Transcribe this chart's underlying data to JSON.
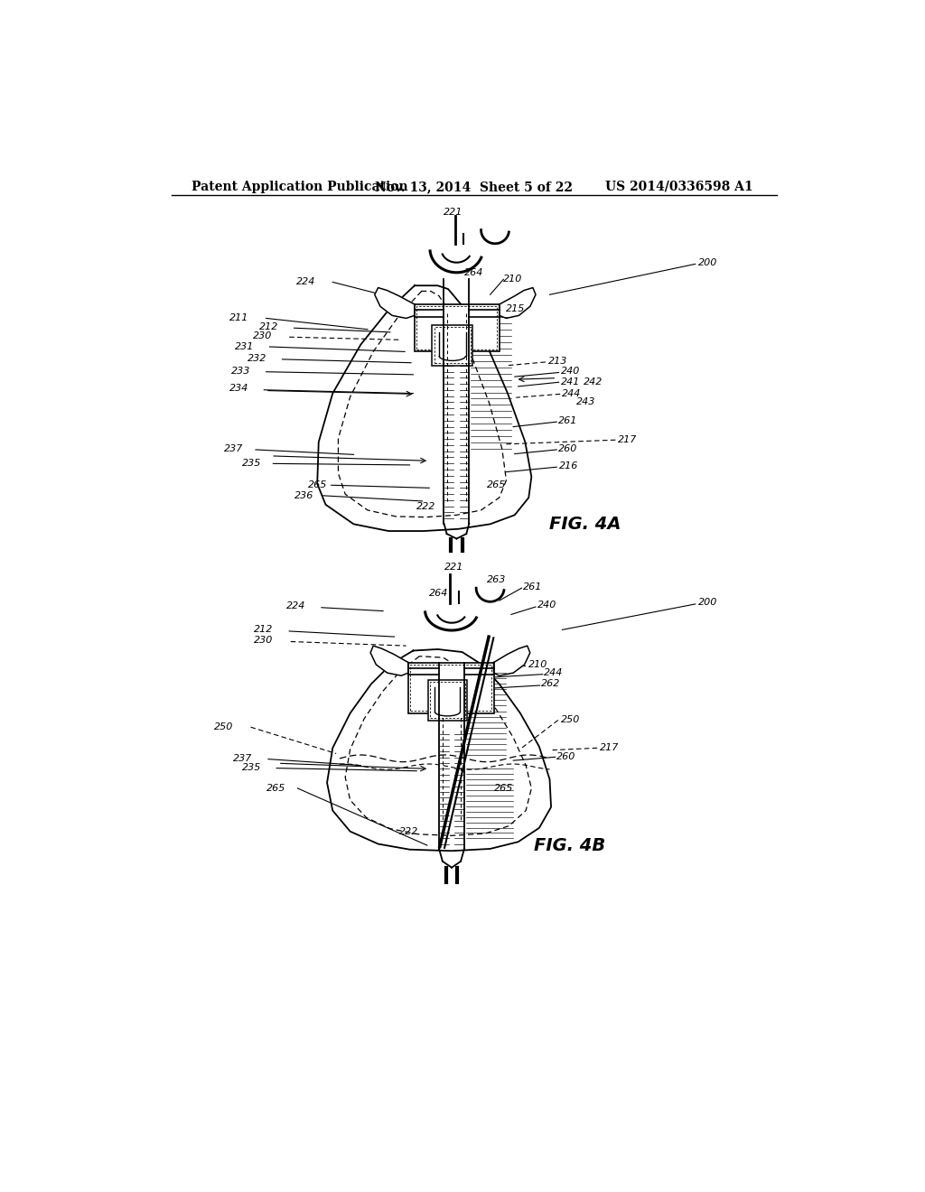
{
  "bg_color": "#ffffff",
  "line_color": "#000000",
  "header_left": "Patent Application Publication",
  "header_mid": "Nov. 13, 2014  Sheet 5 of 22",
  "header_right": "US 2014/0336598 A1",
  "fig4a_label": "FIG. 4A",
  "fig4b_label": "FIG. 4B"
}
